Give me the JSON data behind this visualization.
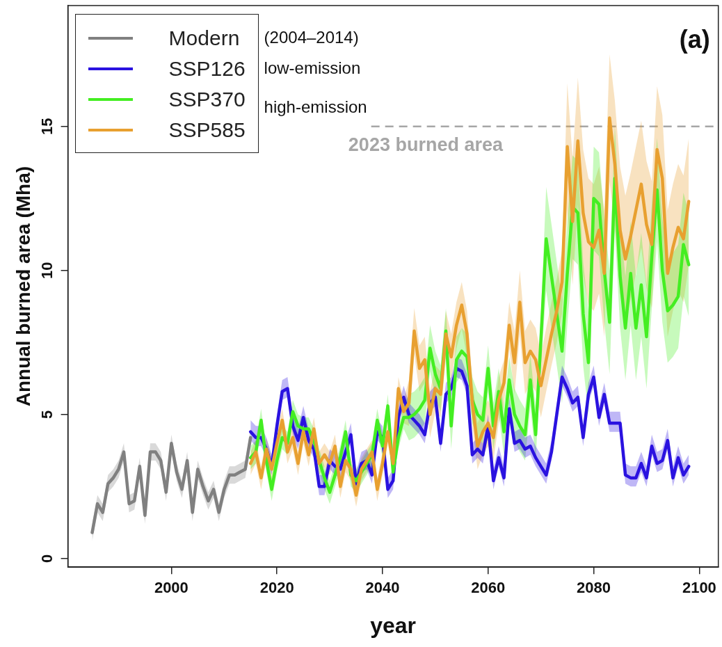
{
  "chart_data": {
    "type": "line",
    "xlabel": "year",
    "ylabel": "Annual burned area (Mha)",
    "xlim": [
      1980.4,
      2103.6
    ],
    "ylim": [
      -0.3,
      19.2
    ],
    "xticks": [
      2000,
      2020,
      2040,
      2060,
      2080,
      2100
    ],
    "yticks": [
      0,
      5,
      10,
      15
    ],
    "grid": false,
    "legend": "top left",
    "marker": "none",
    "line_style": "solid",
    "annotations": [
      "(2004–2014)",
      "low-emission",
      "high-emission",
      "(a)"
    ],
    "ref_lines": [
      {
        "axis": "y",
        "value": 15,
        "label": "2023 burned area",
        "color": "#a6a6a6",
        "line_style": "dashed"
      }
    ],
    "series": [
      {
        "name": "Modern",
        "color": "#808080",
        "x": [
          1985,
          1986,
          1987,
          1988,
          1989,
          1990,
          1991,
          1992,
          1993,
          1994,
          1995,
          1996,
          1997,
          1998,
          1999,
          2000,
          2001,
          2002,
          2003,
          2004,
          2005,
          2006,
          2007,
          2008,
          2009,
          2010,
          2011,
          2012,
          2013,
          2014,
          2015
        ],
        "values": [
          0.9,
          1.9,
          1.6,
          2.6,
          2.8,
          3.1,
          3.7,
          1.9,
          2.0,
          3.2,
          1.5,
          3.7,
          3.7,
          3.4,
          2.3,
          4.0,
          3.0,
          2.4,
          3.4,
          1.6,
          3.1,
          2.5,
          2.0,
          2.4,
          1.6,
          2.4,
          2.9,
          2.9,
          3.0,
          3.1,
          4.2
        ],
        "lower": [
          0.6,
          1.6,
          1.3,
          2.3,
          2.5,
          2.8,
          3.4,
          1.6,
          1.7,
          2.9,
          1.2,
          3.4,
          3.4,
          3.1,
          2.0,
          3.7,
          2.7,
          2.1,
          3.1,
          1.3,
          2.8,
          2.2,
          1.7,
          2.1,
          1.3,
          2.1,
          2.6,
          2.6,
          2.7,
          2.8,
          3.9
        ],
        "upper": [
          1.2,
          2.2,
          1.9,
          2.9,
          3.1,
          3.4,
          4.0,
          2.2,
          2.3,
          3.5,
          1.8,
          4.0,
          4.0,
          3.7,
          2.6,
          4.3,
          3.3,
          2.7,
          3.7,
          1.9,
          3.4,
          2.8,
          2.3,
          2.7,
          1.9,
          2.7,
          3.2,
          3.2,
          3.3,
          3.4,
          4.5
        ]
      },
      {
        "name": "SSP126",
        "color": "#2a12e0",
        "x": [
          2015,
          2016,
          2017,
          2018,
          2019,
          2020,
          2021,
          2022,
          2023,
          2024,
          2025,
          2026,
          2027,
          2028,
          2029,
          2030,
          2031,
          2032,
          2033,
          2034,
          2035,
          2036,
          2037,
          2038,
          2039,
          2040,
          2041,
          2042,
          2043,
          2044,
          2045,
          2046,
          2047,
          2048,
          2049,
          2050,
          2051,
          2052,
          2053,
          2054,
          2055,
          2056,
          2057,
          2058,
          2059,
          2060,
          2061,
          2062,
          2063,
          2064,
          2065,
          2066,
          2067,
          2068,
          2069,
          2070,
          2071,
          2072,
          2073,
          2074,
          2075,
          2076,
          2077,
          2078,
          2079,
          2080,
          2081,
          2082,
          2083,
          2084,
          2085,
          2086,
          2087,
          2088,
          2089,
          2090,
          2091,
          2092,
          2093,
          2094,
          2095,
          2096,
          2097,
          2098
        ],
        "values": [
          4.4,
          4.2,
          4.2,
          3.8,
          3.2,
          4.6,
          5.8,
          5.9,
          4.6,
          4.1,
          4.9,
          4.1,
          3.8,
          2.5,
          2.5,
          3.4,
          3.2,
          3.1,
          3.7,
          4.3,
          2.6,
          3.3,
          3.4,
          2.9,
          4.4,
          4.2,
          2.4,
          2.7,
          4.9,
          5.6,
          5.0,
          4.8,
          4.6,
          4.3,
          5.4,
          5.6,
          4.0,
          5.7,
          5.9,
          6.6,
          6.5,
          6.0,
          3.6,
          3.8,
          3.6,
          4.6,
          2.7,
          3.5,
          2.8,
          5.2,
          4.0,
          4.1,
          3.8,
          3.9,
          3.5,
          3.2,
          2.9,
          3.7,
          5.0,
          6.3,
          5.9,
          5.4,
          5.6,
          4.2,
          5.7,
          6.3,
          4.9,
          5.7,
          4.7,
          4.7,
          4.7,
          2.9,
          2.8,
          2.8,
          3.3,
          2.8,
          3.9,
          3.3,
          3.4,
          4.1,
          2.8,
          3.5,
          2.9,
          3.2
        ],
        "lower": [
          4.1,
          3.9,
          3.9,
          3.5,
          2.9,
          4.3,
          5.5,
          5.6,
          4.3,
          3.8,
          4.6,
          3.8,
          3.5,
          2.2,
          2.2,
          3.1,
          2.9,
          2.8,
          3.4,
          4.0,
          2.3,
          3.0,
          3.1,
          2.6,
          4.1,
          3.9,
          2.1,
          2.4,
          4.6,
          5.3,
          4.7,
          4.5,
          4.3,
          4.0,
          5.1,
          5.3,
          3.7,
          5.4,
          5.6,
          6.3,
          6.2,
          5.7,
          3.3,
          3.5,
          3.3,
          4.3,
          2.4,
          3.2,
          2.5,
          4.9,
          3.7,
          3.8,
          3.5,
          3.6,
          3.2,
          2.9,
          2.6,
          3.4,
          4.7,
          6.0,
          5.6,
          5.1,
          5.3,
          3.9,
          5.4,
          6.0,
          4.6,
          5.4,
          4.4,
          4.4,
          4.4,
          2.6,
          2.5,
          2.5,
          3.0,
          2.5,
          3.6,
          3.0,
          3.1,
          3.8,
          2.5,
          3.2,
          2.6,
          2.9
        ],
        "upper": [
          4.8,
          4.6,
          4.6,
          4.2,
          3.6,
          5.0,
          6.2,
          6.3,
          5.0,
          4.5,
          5.3,
          4.5,
          4.2,
          2.9,
          2.9,
          3.8,
          3.6,
          3.5,
          4.1,
          4.7,
          3.0,
          3.7,
          3.8,
          3.3,
          4.8,
          4.6,
          2.8,
          3.1,
          5.3,
          6.0,
          5.4,
          5.2,
          5.0,
          4.7,
          5.8,
          6.0,
          4.4,
          6.1,
          6.3,
          7.0,
          6.9,
          6.4,
          4.0,
          4.2,
          4.0,
          5.0,
          3.1,
          3.9,
          3.2,
          5.6,
          4.4,
          4.5,
          4.2,
          4.3,
          3.9,
          3.6,
          3.3,
          4.1,
          5.4,
          6.7,
          6.3,
          5.8,
          6.0,
          4.6,
          6.1,
          6.7,
          5.3,
          6.1,
          5.1,
          5.1,
          5.1,
          3.3,
          3.2,
          3.2,
          3.7,
          3.2,
          4.3,
          3.7,
          3.8,
          4.5,
          3.2,
          3.9,
          3.3,
          3.6
        ]
      },
      {
        "name": "SSP370",
        "color": "#44ee22",
        "x": [
          2015,
          2016,
          2017,
          2018,
          2019,
          2020,
          2021,
          2022,
          2023,
          2024,
          2025,
          2026,
          2027,
          2028,
          2029,
          2030,
          2031,
          2032,
          2033,
          2034,
          2035,
          2036,
          2037,
          2038,
          2039,
          2040,
          2041,
          2042,
          2043,
          2044,
          2045,
          2046,
          2047,
          2048,
          2049,
          2050,
          2051,
          2052,
          2053,
          2054,
          2055,
          2056,
          2057,
          2058,
          2059,
          2060,
          2061,
          2062,
          2063,
          2064,
          2065,
          2066,
          2067,
          2068,
          2069,
          2070,
          2071,
          2072,
          2073,
          2074,
          2075,
          2076,
          2077,
          2078,
          2079,
          2080,
          2081,
          2082,
          2083,
          2084,
          2085,
          2086,
          2087,
          2088,
          2089,
          2090,
          2091,
          2092,
          2093,
          2094,
          2095,
          2096,
          2097,
          2098
        ],
        "values": [
          3.5,
          3.7,
          4.8,
          3.4,
          2.4,
          3.4,
          4.2,
          4.0,
          5.1,
          4.6,
          4.5,
          4.5,
          4.1,
          3.4,
          2.8,
          2.3,
          2.9,
          3.5,
          4.4,
          2.9,
          2.7,
          3.0,
          3.3,
          3.6,
          4.8,
          3.9,
          5.3,
          3.0,
          4.2,
          4.9,
          4.9,
          5.0,
          5.2,
          5.5,
          7.3,
          6.4,
          5.9,
          7.9,
          4.6,
          6.9,
          7.2,
          7.0,
          5.5,
          5.0,
          4.8,
          6.6,
          4.6,
          5.8,
          4.4,
          6.2,
          5.0,
          4.6,
          4.3,
          6.2,
          4.3,
          7.6,
          11.1,
          9.8,
          8.5,
          7.2,
          9.9,
          12.2,
          12.0,
          8.5,
          6.8,
          12.5,
          12.3,
          10.0,
          8.2,
          13.2,
          9.8,
          8.0,
          9.9,
          8.0,
          9.5,
          7.7,
          10.5,
          12.8,
          10.0,
          8.6,
          8.8,
          9.1,
          10.9,
          10.2
        ],
        "lower": [
          3.1,
          3.3,
          4.4,
          3.0,
          2.0,
          3.0,
          3.8,
          3.6,
          4.7,
          4.2,
          4.1,
          4.1,
          3.7,
          3.0,
          2.4,
          1.9,
          2.5,
          3.1,
          4.0,
          2.5,
          2.3,
          2.6,
          2.9,
          3.2,
          4.4,
          3.5,
          4.9,
          2.6,
          3.8,
          4.5,
          4.1,
          4.2,
          4.4,
          4.7,
          6.5,
          5.6,
          5.1,
          7.1,
          3.8,
          6.1,
          6.4,
          6.2,
          4.7,
          4.2,
          4.0,
          5.8,
          3.8,
          5.0,
          3.6,
          5.4,
          4.1,
          3.7,
          3.4,
          5.3,
          3.4,
          6.7,
          9.3,
          8.0,
          6.7,
          5.4,
          8.1,
          10.4,
          10.2,
          6.7,
          5.0,
          10.7,
          10.5,
          8.2,
          6.4,
          11.4,
          8.0,
          6.2,
          8.1,
          6.2,
          7.7,
          5.9,
          8.7,
          11.0,
          8.2,
          6.8,
          7.0,
          7.3,
          9.1,
          8.4
        ],
        "upper": [
          3.9,
          4.1,
          5.2,
          3.8,
          2.8,
          3.8,
          4.6,
          4.4,
          5.5,
          5.0,
          4.9,
          4.9,
          4.5,
          3.8,
          3.2,
          2.7,
          3.3,
          3.9,
          4.8,
          3.3,
          3.1,
          3.4,
          3.7,
          4.0,
          5.2,
          4.3,
          5.7,
          3.4,
          4.6,
          5.3,
          5.7,
          5.8,
          6.0,
          6.3,
          8.1,
          7.2,
          6.7,
          8.7,
          5.4,
          7.7,
          8.0,
          7.8,
          6.3,
          5.8,
          5.6,
          7.4,
          5.4,
          6.6,
          5.2,
          7.0,
          5.9,
          5.5,
          5.2,
          7.1,
          5.2,
          8.5,
          12.9,
          11.6,
          10.3,
          9.0,
          11.7,
          14.0,
          13.8,
          10.3,
          8.6,
          14.3,
          14.1,
          11.8,
          10.0,
          15.0,
          11.6,
          9.8,
          11.7,
          9.8,
          11.3,
          9.5,
          12.3,
          14.6,
          11.8,
          10.4,
          10.6,
          10.9,
          12.7,
          12.0
        ]
      },
      {
        "name": "SSP585",
        "color": "#e8a030",
        "x": [
          2015,
          2016,
          2017,
          2018,
          2019,
          2020,
          2021,
          2022,
          2023,
          2024,
          2025,
          2026,
          2027,
          2028,
          2029,
          2030,
          2031,
          2032,
          2033,
          2034,
          2035,
          2036,
          2037,
          2038,
          2039,
          2040,
          2041,
          2042,
          2043,
          2044,
          2045,
          2046,
          2047,
          2048,
          2049,
          2050,
          2051,
          2052,
          2053,
          2054,
          2055,
          2056,
          2057,
          2058,
          2059,
          2060,
          2061,
          2062,
          2063,
          2064,
          2065,
          2066,
          2067,
          2068,
          2069,
          2070,
          2071,
          2072,
          2073,
          2074,
          2075,
          2076,
          2077,
          2078,
          2079,
          2080,
          2081,
          2082,
          2083,
          2084,
          2085,
          2086,
          2087,
          2088,
          2089,
          2090,
          2091,
          2092,
          2093,
          2094,
          2095,
          2096,
          2097,
          2098
        ],
        "values": [
          3.3,
          3.7,
          2.8,
          3.8,
          3.1,
          4.0,
          4.8,
          3.7,
          4.2,
          3.3,
          4.4,
          3.6,
          4.5,
          3.3,
          3.6,
          3.3,
          3.9,
          2.5,
          3.4,
          3.1,
          2.2,
          3.1,
          3.4,
          3.7,
          2.4,
          3.3,
          4.4,
          3.3,
          5.9,
          5.1,
          5.4,
          7.9,
          6.6,
          6.9,
          5.0,
          5.9,
          5.7,
          7.8,
          7.0,
          8.1,
          8.8,
          7.8,
          5.4,
          3.9,
          4.4,
          4.7,
          4.2,
          5.5,
          6.1,
          8.1,
          6.8,
          8.9,
          6.8,
          7.2,
          6.9,
          6.0,
          6.9,
          7.8,
          8.6,
          9.6,
          14.3,
          11.7,
          14.5,
          12.0,
          11.0,
          10.8,
          11.4,
          9.9,
          15.3,
          13.7,
          11.4,
          10.4,
          11.2,
          12.1,
          13.0,
          11.6,
          10.9,
          14.2,
          13.2,
          9.9,
          10.8,
          11.5,
          11.1,
          12.4
        ],
        "lower": [
          2.9,
          3.3,
          2.4,
          3.4,
          2.7,
          3.6,
          4.4,
          3.3,
          3.8,
          2.9,
          4.0,
          3.2,
          4.1,
          2.9,
          3.2,
          2.9,
          3.5,
          2.1,
          3.0,
          2.7,
          1.8,
          2.7,
          3.0,
          3.3,
          2.0,
          2.9,
          4.0,
          2.9,
          5.5,
          4.7,
          4.6,
          7.1,
          5.8,
          6.1,
          4.2,
          5.1,
          4.9,
          7.0,
          6.2,
          7.3,
          8.0,
          7.0,
          4.6,
          3.1,
          3.6,
          3.9,
          3.4,
          4.7,
          5.3,
          7.3,
          5.7,
          7.8,
          5.7,
          6.1,
          5.8,
          4.9,
          5.8,
          6.7,
          7.5,
          8.5,
          12.1,
          9.5,
          12.3,
          9.8,
          8.8,
          8.6,
          9.2,
          7.7,
          13.1,
          11.5,
          9.2,
          8.2,
          9.0,
          9.9,
          10.8,
          9.4,
          8.7,
          12.0,
          11.0,
          7.7,
          8.6,
          9.3,
          8.9,
          10.2
        ],
        "upper": [
          3.7,
          4.1,
          3.2,
          4.2,
          3.5,
          4.4,
          5.2,
          4.1,
          4.6,
          3.7,
          4.8,
          4.0,
          4.9,
          3.7,
          4.0,
          3.7,
          4.3,
          2.9,
          3.8,
          3.5,
          2.6,
          3.5,
          3.8,
          4.1,
          2.8,
          3.7,
          4.8,
          3.7,
          6.3,
          5.5,
          6.2,
          8.7,
          7.4,
          7.7,
          5.8,
          6.7,
          6.5,
          8.6,
          7.8,
          8.9,
          9.6,
          8.6,
          6.2,
          4.7,
          5.2,
          5.5,
          5.0,
          6.3,
          6.9,
          8.9,
          7.9,
          10.0,
          7.9,
          8.3,
          8.0,
          7.1,
          8.0,
          8.9,
          9.7,
          10.7,
          16.5,
          13.9,
          16.7,
          14.2,
          13.2,
          13.0,
          13.6,
          12.1,
          17.5,
          15.9,
          13.6,
          12.6,
          13.4,
          14.3,
          15.2,
          13.8,
          13.1,
          16.4,
          15.4,
          12.1,
          13.0,
          13.7,
          13.3,
          14.6
        ]
      }
    ]
  }
}
